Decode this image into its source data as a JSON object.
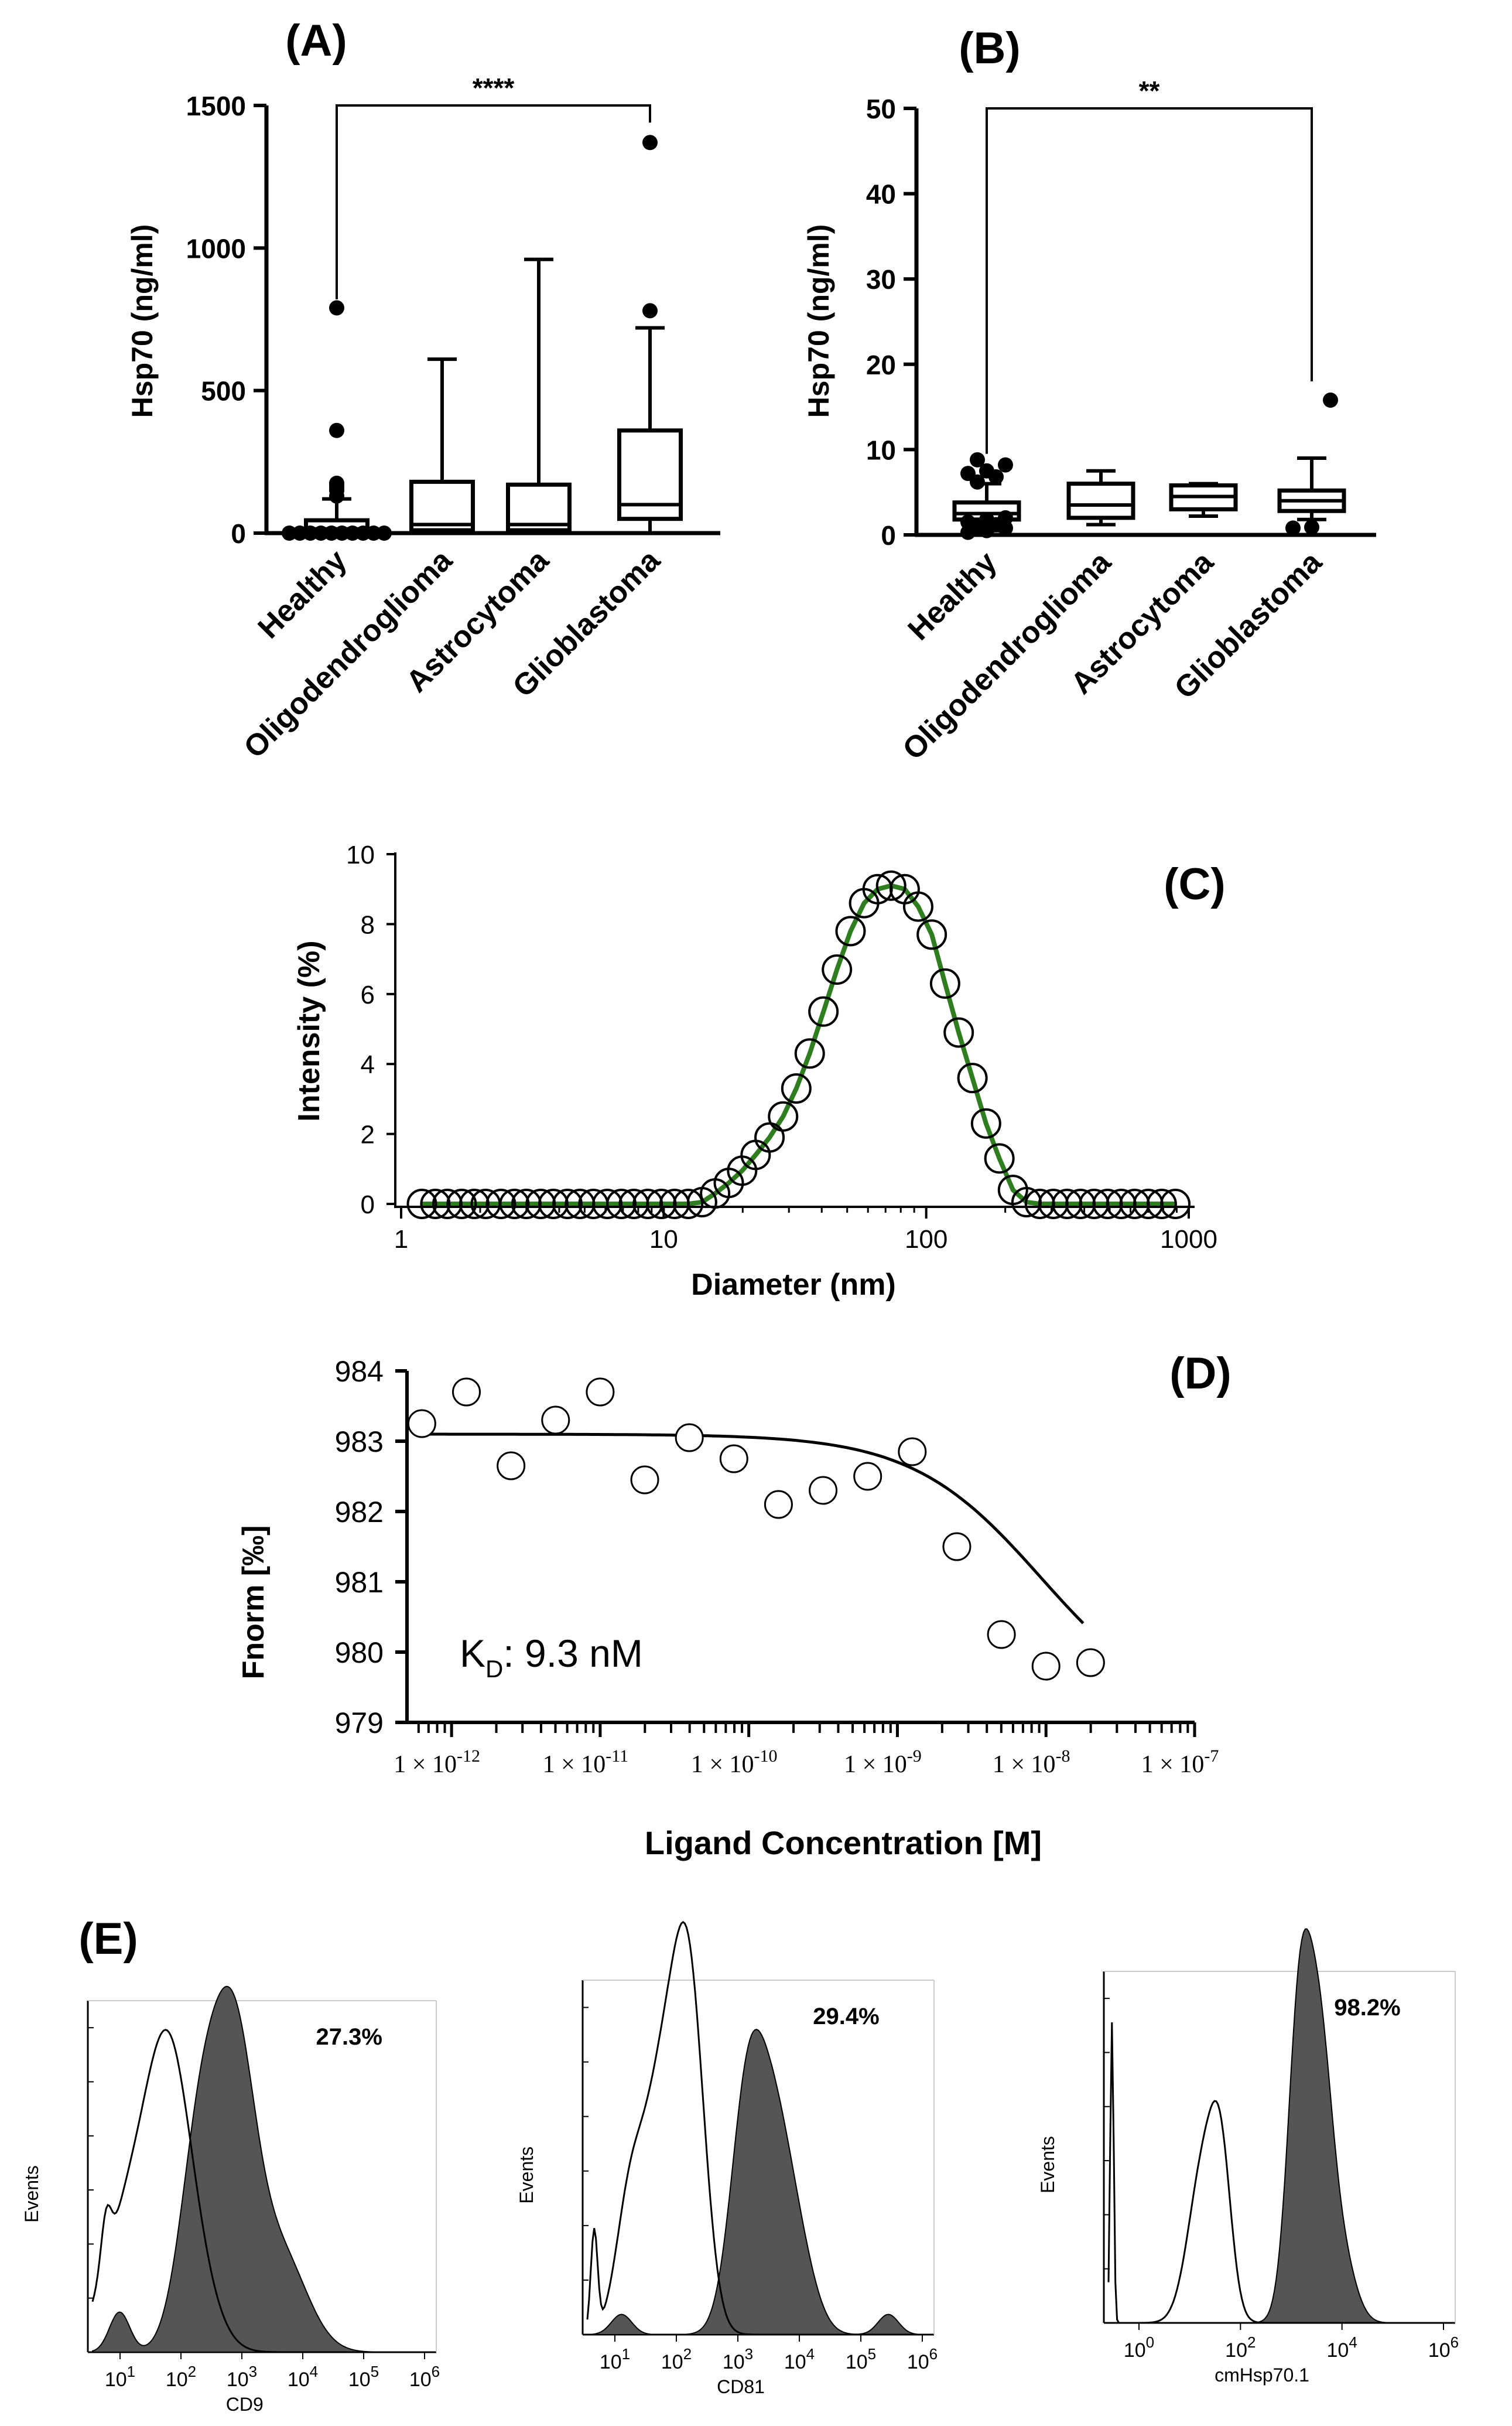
{
  "panel_labels": {
    "A": "(A)",
    "B": "(B)",
    "C": "(C)",
    "D": "(D)",
    "E": "(E)"
  },
  "chart_data": [
    {
      "id": "A",
      "type": "boxplot",
      "title": "(A)",
      "ylabel": "Hsp70 (ng/ml)",
      "ylim": [
        0,
        1500
      ],
      "yticks": [
        "0",
        "500",
        "1000",
        "1500"
      ],
      "categories": [
        "Healthy",
        "Oligodendroglioma",
        "Astrocytoma",
        "Glioblastoma"
      ],
      "boxes": [
        {
          "q1": 0,
          "median": 15,
          "q3": 45,
          "whisker_low": 0,
          "whisker_high": 120,
          "outliers": [
            0,
            0,
            0,
            0,
            0,
            0,
            0,
            0,
            0,
            0,
            130,
            150,
            160,
            170,
            175,
            360,
            790
          ]
        },
        {
          "q1": 10,
          "median": 30,
          "q3": 180,
          "whisker_low": 0,
          "whisker_high": 610,
          "outliers": []
        },
        {
          "q1": 10,
          "median": 30,
          "q3": 170,
          "whisker_low": 0,
          "whisker_high": 960,
          "outliers": []
        },
        {
          "q1": 50,
          "median": 100,
          "q3": 360,
          "whisker_low": 0,
          "whisker_high": 720,
          "outliers": [
            780,
            1370
          ]
        }
      ],
      "significance": {
        "from": "Healthy",
        "to": "Glioblastoma",
        "label": "****",
        "y": 1500
      }
    },
    {
      "id": "B",
      "type": "boxplot",
      "title": "(B)",
      "ylabel": "Hsp70 (ng/ml)",
      "ylim": [
        0,
        50
      ],
      "yticks": [
        "0",
        "10",
        "20",
        "30",
        "40",
        "50"
      ],
      "categories": [
        "Healthy",
        "Oligodendroglioma",
        "Astrocytoma",
        "Glioblastoma"
      ],
      "boxes": [
        {
          "q1": 1.8,
          "median": 2.5,
          "q3": 3.8,
          "whisker_low": 0.5,
          "whisker_high": 6.0,
          "outliers": [
            0.3,
            0.5,
            0.8,
            1.0,
            1.2,
            1.5,
            1.8,
            2.0,
            6.2,
            6.8,
            7.2,
            7.5,
            8.2,
            8.8
          ]
        },
        {
          "q1": 2.0,
          "median": 3.5,
          "q3": 6.0,
          "whisker_low": 1.2,
          "whisker_high": 7.5,
          "outliers": []
        },
        {
          "q1": 3.0,
          "median": 4.5,
          "q3": 5.8,
          "whisker_low": 2.2,
          "whisker_high": 6.0,
          "outliers": []
        },
        {
          "q1": 2.8,
          "median": 4.0,
          "q3": 5.2,
          "whisker_low": 1.8,
          "whisker_high": 9.0,
          "outliers": [
            0.8,
            0.9,
            15.8
          ]
        }
      ],
      "significance": {
        "from": "Healthy",
        "to": "Glioblastoma",
        "label": "**",
        "y": 50
      }
    },
    {
      "id": "C",
      "type": "line",
      "title": "(C)",
      "xlabel": "Diameter (nm)",
      "ylabel": "Intensity (%)",
      "xscale": "log",
      "xlim": [
        1,
        1000
      ],
      "ylim": [
        0,
        10
      ],
      "xticks": [
        "1",
        "10",
        "100",
        "1000"
      ],
      "yticks": [
        "0",
        "2",
        "4",
        "6",
        "8",
        "10"
      ],
      "points_x": [
        1.2,
        1.35,
        1.5,
        1.7,
        1.9,
        2.1,
        2.4,
        2.7,
        3.0,
        3.4,
        3.8,
        4.3,
        4.8,
        5.4,
        6.1,
        6.9,
        7.7,
        8.7,
        9.8,
        11.0,
        12.4,
        14.0,
        15.7,
        17.7,
        19.9,
        22.4,
        25.3,
        28.5,
        32.0,
        36.0,
        40.6,
        45.7,
        51.5,
        58.0,
        65.3,
        73.5,
        82.8,
        93.2,
        105,
        118,
        133,
        150,
        169,
        190,
        214,
        241,
        271,
        305,
        344,
        387,
        436,
        491,
        553,
        622,
        701,
        789,
        889
      ],
      "points_y": [
        0,
        0,
        0,
        0,
        0,
        0,
        0,
        0,
        0,
        0,
        0,
        0,
        0,
        0,
        0,
        0,
        0,
        0,
        0,
        0,
        0,
        0.05,
        0.3,
        0.6,
        0.95,
        1.4,
        1.9,
        2.5,
        3.3,
        4.3,
        5.5,
        6.7,
        7.8,
        8.6,
        9.0,
        9.1,
        9.0,
        8.5,
        7.7,
        6.3,
        4.9,
        3.6,
        2.3,
        1.3,
        0.4,
        0.05,
        0,
        0,
        0,
        0,
        0,
        0,
        0,
        0,
        0,
        0,
        0
      ],
      "fit_color": "#2e7d1f"
    },
    {
      "id": "D",
      "type": "scatter",
      "title": "(D)",
      "xlabel": "Ligand Concentration [M]",
      "ylabel": "Fnorm [‰]",
      "xscale": "log",
      "xlim_exp": [
        -12.3,
        -7.0
      ],
      "ylim": [
        979,
        984
      ],
      "yticks": [
        "979",
        "980",
        "981",
        "982",
        "983",
        "984"
      ],
      "xticks": [
        {
          "base": "1 × 10",
          "exp": "-12"
        },
        {
          "base": "1 × 10",
          "exp": "-11"
        },
        {
          "base": "1 × 10",
          "exp": "-10"
        },
        {
          "base": "1 × 10",
          "exp": "-9"
        },
        {
          "base": "1 × 10",
          "exp": "-8"
        },
        {
          "base": "1 × 10",
          "exp": "-7"
        }
      ],
      "points_logx": [
        -12.2,
        -11.9,
        -11.6,
        -11.3,
        -11.0,
        -10.7,
        -10.4,
        -10.1,
        -9.8,
        -9.5,
        -9.2,
        -8.9,
        -8.6,
        -8.3,
        -8.0,
        -7.7
      ],
      "points_y": [
        983.25,
        983.7,
        982.65,
        983.3,
        983.7,
        982.45,
        983.05,
        982.75,
        982.1,
        982.3,
        982.5,
        982.85,
        981.5,
        980.25,
        979.8,
        979.85
      ],
      "fit": {
        "top": 983.1,
        "bottom": 979.0,
        "log_kd": -8.03
      },
      "annotation": {
        "text": "K",
        "sub": "D",
        "rest": ": 9.3 nM"
      }
    },
    {
      "id": "E",
      "type": "histogram_overlay",
      "title": "(E)",
      "panels": [
        {
          "xlabel": "CD9",
          "ylabel": "Events",
          "percent": "27.3%",
          "xtick_base": "10",
          "xtick_exps": [
            "1",
            "2",
            "3",
            "4",
            "5",
            "6"
          ]
        },
        {
          "xlabel": "CD81",
          "ylabel": "Events",
          "percent": "29.4%",
          "xtick_base": "10",
          "xtick_exps": [
            "1",
            "2",
            "3",
            "4",
            "5",
            "6"
          ]
        },
        {
          "xlabel": "cmHsp70.1",
          "ylabel": "Events",
          "percent": "98.2%",
          "xtick_base": "10",
          "xtick_exps": [
            "0",
            "2",
            "4",
            "6"
          ]
        }
      ]
    }
  ]
}
